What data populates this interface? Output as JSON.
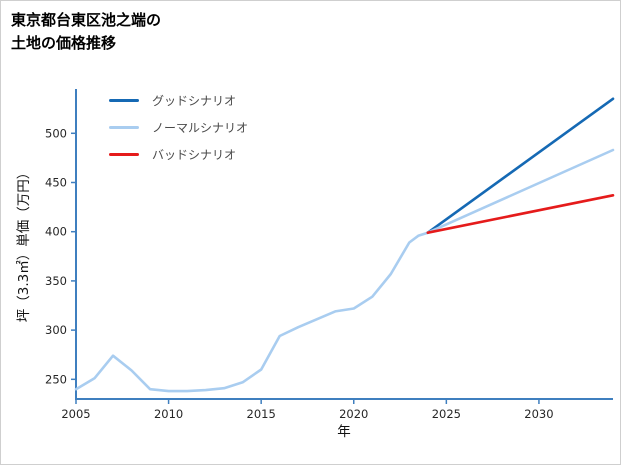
{
  "page": {
    "title_line1": "東京都台東区池之端の",
    "title_line2": "土地の価格推移"
  },
  "chart_data": {
    "type": "line",
    "title": "東京都台東区池之端の土地の価格推移",
    "xlabel": "年",
    "ylabel": "坪（3.3㎡）単価（万円）",
    "xlim": [
      2005,
      2034
    ],
    "ylim": [
      230,
      545
    ],
    "xticks": [
      2005,
      2010,
      2015,
      2020,
      2025,
      2030
    ],
    "yticks": [
      250,
      300,
      350,
      400,
      450,
      500
    ],
    "grid": false,
    "legend_position": "upper-left",
    "axis_color": "#3f7fbf",
    "legend": [
      {
        "label": "グッドシナリオ",
        "color": "#1569b4"
      },
      {
        "label": "ノーマルシナリオ",
        "color": "#a9cdf0"
      },
      {
        "label": "バッドシナリオ",
        "color": "#e51b1b"
      }
    ],
    "series": [
      {
        "name": "price-history",
        "color": "#a9cdf0",
        "x": [
          2005,
          2006,
          2007,
          2008,
          2009,
          2010,
          2011,
          2012,
          2013,
          2014,
          2015,
          2016,
          2017,
          2018,
          2019,
          2020,
          2021,
          2022,
          2023,
          2023.5,
          2024
        ],
        "y": [
          240,
          251,
          274,
          259,
          240,
          238,
          238,
          239,
          241,
          247,
          260,
          294,
          303,
          311,
          319,
          322,
          334,
          357,
          389,
          396,
          399
        ]
      },
      {
        "name": "good-scenario",
        "color": "#1569b4",
        "x": [
          2024,
          2034
        ],
        "y": [
          399,
          535
        ]
      },
      {
        "name": "normal-scenario",
        "color": "#a9cdf0",
        "x": [
          2024,
          2034
        ],
        "y": [
          399,
          483
        ]
      },
      {
        "name": "bad-scenario",
        "color": "#e51b1b",
        "x": [
          2024,
          2034
        ],
        "y": [
          399,
          437
        ]
      }
    ]
  }
}
